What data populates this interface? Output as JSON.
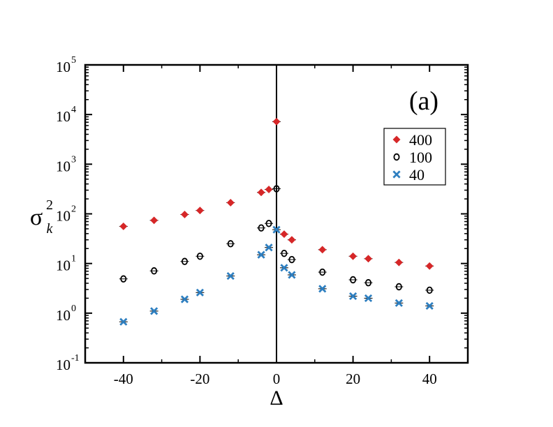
{
  "chart_data": {
    "type": "scatter",
    "title": "",
    "panel_label": "(a)",
    "xlabel": "Δ",
    "ylabel": {
      "base": "σ",
      "sub": "k",
      "sup": "2"
    },
    "xlim": [
      -50,
      50
    ],
    "ylim_log10": [
      -1,
      5
    ],
    "x_ticks": [
      -40,
      -20,
      0,
      20,
      40
    ],
    "y_ticks": [
      {
        "base": "10",
        "exp": "-1"
      },
      {
        "base": "10",
        "exp": "0"
      },
      {
        "base": "10",
        "exp": "1"
      },
      {
        "base": "10",
        "exp": "2"
      },
      {
        "base": "10",
        "exp": "3"
      },
      {
        "base": "10",
        "exp": "4"
      },
      {
        "base": "10",
        "exp": "5"
      }
    ],
    "vertical_line_at_x": 0,
    "legend_position": "right",
    "series": [
      {
        "name": "400",
        "marker": "diamond",
        "color": "#d62728",
        "x": [
          -40,
          -32,
          -24,
          -20,
          -12,
          -4,
          -2,
          0,
          2,
          4,
          12,
          20,
          24,
          32,
          40
        ],
        "y": [
          56,
          74,
          97,
          117,
          168,
          270,
          310,
          7200,
          39,
          30,
          19,
          14,
          12.5,
          10.5,
          8.9
        ]
      },
      {
        "name": "100",
        "marker": "circle",
        "color": "#000000",
        "x": [
          -40,
          -32,
          -24,
          -20,
          -12,
          -4,
          -2,
          0,
          2,
          4,
          12,
          20,
          24,
          32,
          40
        ],
        "y": [
          4.9,
          7.1,
          11,
          14,
          25,
          52,
          64,
          320,
          16,
          12,
          6.7,
          4.7,
          4.1,
          3.4,
          2.9
        ]
      },
      {
        "name": "40",
        "marker": "x",
        "color": "#2e7fc0",
        "x": [
          -40,
          -32,
          -24,
          -20,
          -12,
          -4,
          -2,
          0,
          2,
          4,
          12,
          20,
          24,
          32,
          40
        ],
        "y": [
          0.67,
          1.1,
          1.9,
          2.6,
          5.6,
          15,
          21,
          48,
          8.2,
          5.9,
          3.1,
          2.2,
          2.0,
          1.6,
          1.4
        ]
      }
    ]
  }
}
